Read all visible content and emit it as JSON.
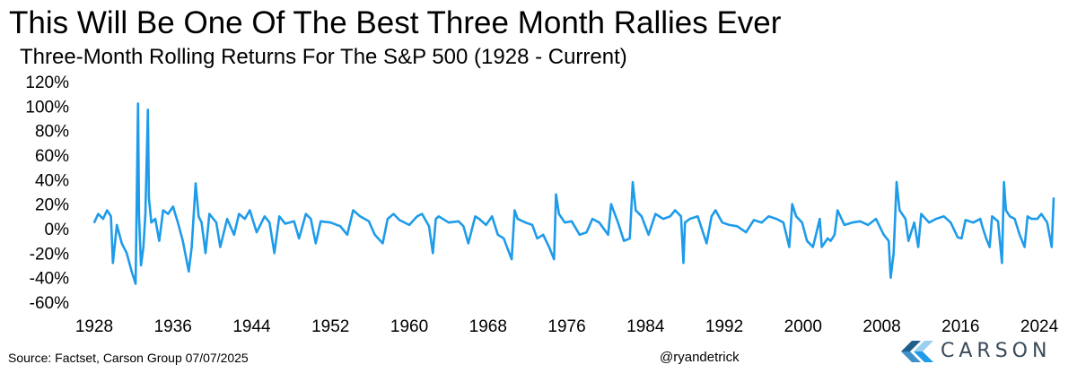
{
  "colors": {
    "series": "#1E9BE9",
    "text": "#000000",
    "logo_text": "#3A4A5A",
    "logo_dark": "#1F5F8B",
    "logo_mid": "#3E91C9",
    "logo_light": "#9BD0F0"
  },
  "footer": {
    "source": "Source: Factset, Carson Group 07/07/2025",
    "handle": "@ryandetrick",
    "logo_text": "CARSON"
  },
  "chart_data": {
    "type": "line",
    "title": "This Will Be One Of The Best Three Month Rallies Ever",
    "subtitle": "Three-Month Rolling Returns For The S&P 500 (1928 - Current)",
    "xlabel": "",
    "ylabel": "",
    "grid": false,
    "legend": "none",
    "ylim": [
      -60,
      120
    ],
    "xlim": [
      1928,
      2026
    ],
    "y_ticks": [
      -60,
      -40,
      -20,
      0,
      20,
      40,
      60,
      80,
      100,
      120
    ],
    "y_tick_labels": [
      "-60%",
      "-40%",
      "-20%",
      "0%",
      "20%",
      "40%",
      "60%",
      "80%",
      "100%",
      "120%"
    ],
    "x_ticks": [
      1928,
      1936,
      1944,
      1952,
      1960,
      1968,
      1976,
      1984,
      1992,
      2000,
      2008,
      2016,
      2024
    ],
    "x_tick_labels": [
      "1928",
      "1936",
      "1944",
      "1952",
      "1960",
      "1968",
      "1976",
      "1984",
      "1992",
      "2000",
      "2008",
      "2016",
      "2024"
    ],
    "series": [
      {
        "name": "S&P 500 three-month rolling return (%)",
        "x": [
          1928.0,
          1928.4,
          1928.9,
          1929.3,
          1929.7,
          1929.9,
          1930.3,
          1930.8,
          1931.3,
          1931.8,
          1932.2,
          1932.45,
          1932.55,
          1932.75,
          1933.0,
          1933.2,
          1933.45,
          1933.55,
          1933.8,
          1934.2,
          1934.6,
          1935.0,
          1935.5,
          1936.0,
          1936.5,
          1937.0,
          1937.6,
          1937.9,
          1938.3,
          1938.6,
          1938.9,
          1939.3,
          1939.7,
          1940.4,
          1940.8,
          1941.5,
          1942.2,
          1942.7,
          1943.3,
          1943.8,
          1944.5,
          1945.3,
          1945.8,
          1946.3,
          1946.8,
          1947.4,
          1948.3,
          1948.8,
          1949.5,
          1950.0,
          1950.5,
          1951.0,
          1952.0,
          1953.0,
          1953.7,
          1954.3,
          1955.0,
          1955.9,
          1956.5,
          1957.3,
          1957.8,
          1958.4,
          1959.0,
          1960.0,
          1960.8,
          1961.3,
          1962.0,
          1962.4,
          1962.7,
          1963.0,
          1964.0,
          1965.0,
          1965.5,
          1966.0,
          1966.7,
          1967.1,
          1967.8,
          1968.4,
          1969.0,
          1969.6,
          1970.4,
          1970.7,
          1971.0,
          1971.8,
          1972.5,
          1973.0,
          1973.6,
          1974.2,
          1974.7,
          1974.9,
          1975.2,
          1975.8,
          1976.5,
          1977.3,
          1978.0,
          1978.6,
          1979.3,
          1980.2,
          1980.5,
          1981.2,
          1981.8,
          1982.4,
          1982.7,
          1983.0,
          1983.6,
          1984.3,
          1985.0,
          1985.8,
          1986.5,
          1987.0,
          1987.6,
          1987.85,
          1988.0,
          1988.5,
          1989.3,
          1990.2,
          1990.7,
          1991.1,
          1991.8,
          1992.5,
          1993.3,
          1994.2,
          1995.0,
          1995.8,
          1996.5,
          1997.3,
          1998.0,
          1998.6,
          1998.9,
          1999.3,
          1999.9,
          2000.4,
          2001.0,
          2001.7,
          2001.9,
          2002.5,
          2002.8,
          2003.2,
          2003.5,
          2004.2,
          2005.0,
          2005.8,
          2006.6,
          2007.4,
          2008.2,
          2008.7,
          2008.9,
          2009.2,
          2009.5,
          2009.8,
          2010.4,
          2010.7,
          2011.3,
          2011.7,
          2012.0,
          2012.8,
          2013.5,
          2014.3,
          2015.0,
          2015.7,
          2016.1,
          2016.5,
          2017.3,
          2018.0,
          2018.2,
          2018.6,
          2018.95,
          2019.2,
          2019.8,
          2020.2,
          2020.4,
          2020.6,
          2021.0,
          2021.5,
          2022.0,
          2022.5,
          2022.8,
          2023.2,
          2023.8,
          2024.2,
          2024.8,
          2025.25,
          2025.45
        ],
        "values": [
          5,
          12,
          8,
          15,
          10,
          -28,
          3,
          -12,
          -20,
          -35,
          -45,
          102,
          10,
          -30,
          -15,
          12,
          97,
          25,
          5,
          8,
          -10,
          15,
          12,
          18,
          5,
          -10,
          -35,
          -15,
          37,
          10,
          5,
          -20,
          12,
          5,
          -15,
          8,
          -5,
          12,
          8,
          15,
          -3,
          10,
          5,
          -20,
          10,
          4,
          6,
          -8,
          12,
          8,
          -12,
          6,
          5,
          2,
          -5,
          15,
          10,
          6,
          -5,
          -12,
          8,
          12,
          7,
          3,
          10,
          12,
          2,
          -20,
          8,
          10,
          5,
          6,
          2,
          -12,
          10,
          8,
          3,
          10,
          -5,
          -8,
          -25,
          15,
          8,
          5,
          3,
          -8,
          -5,
          -15,
          -25,
          28,
          12,
          5,
          6,
          -5,
          -3,
          8,
          5,
          -5,
          20,
          5,
          -10,
          -8,
          38,
          15,
          10,
          -5,
          12,
          8,
          10,
          15,
          10,
          -28,
          5,
          8,
          10,
          -12,
          10,
          15,
          5,
          3,
          2,
          -3,
          7,
          5,
          10,
          8,
          5,
          -15,
          20,
          10,
          5,
          -10,
          -15,
          8,
          -15,
          -8,
          -10,
          -5,
          15,
          3,
          5,
          6,
          3,
          8,
          -5,
          -10,
          -40,
          -20,
          38,
          15,
          8,
          -10,
          5,
          -15,
          12,
          5,
          8,
          10,
          5,
          -7,
          -8,
          7,
          5,
          8,
          2,
          -8,
          -15,
          10,
          6,
          -28,
          38,
          15,
          10,
          8,
          -5,
          -15,
          10,
          8,
          8,
          12,
          5,
          -15,
          25
        ]
      }
    ]
  }
}
